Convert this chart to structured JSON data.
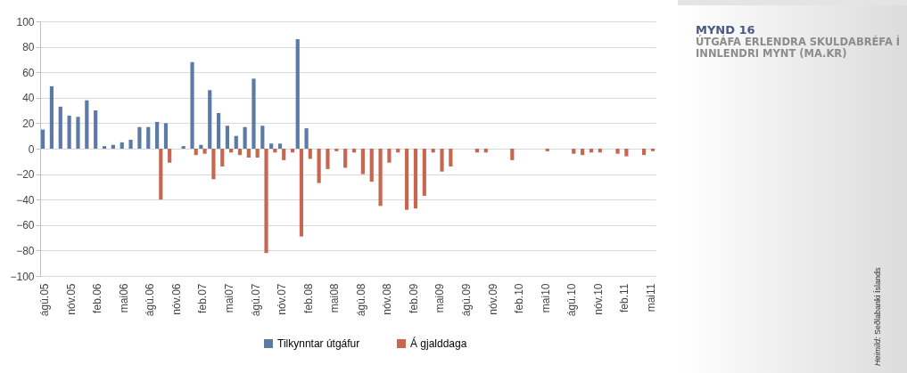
{
  "chart_data": {
    "type": "bar",
    "title": "MYND 16",
    "subtitle": "ÚTGÁFA ERLENDRA SKULDABRÉFA Í INNLENDRI MYNT (MA.KR)",
    "annotations": [
      "Heimild: Seðlabanki Íslands"
    ],
    "categories": [
      "ágú.05",
      null,
      null,
      "nóv.05",
      null,
      null,
      "feb.06",
      null,
      null,
      "mai06",
      null,
      null,
      "ágú.06",
      null,
      null,
      "nóv.06",
      null,
      null,
      "feb.07",
      null,
      null,
      "mai07",
      null,
      null,
      "ágú.07",
      null,
      null,
      "nóv.07",
      null,
      null,
      "feb.08",
      null,
      null,
      "mai08",
      null,
      null,
      "ágú.08",
      null,
      null,
      "nóv.08",
      null,
      null,
      "feb.09",
      null,
      null,
      "mai09",
      null,
      null,
      "ágú.09",
      null,
      null,
      "nóv.09",
      null,
      null,
      "feb.10",
      null,
      null,
      "mai10",
      null,
      null,
      "ágú.10",
      null,
      null,
      "nóv.10",
      null,
      null,
      "feb.11",
      null,
      null,
      "mai11"
    ],
    "series": [
      {
        "name": "Tilkynntar útgáfur",
        "color": "#5b7aa5",
        "values": [
          15,
          49,
          33,
          26,
          25,
          38,
          30,
          2,
          3,
          5,
          7,
          17,
          17,
          21,
          20,
          0,
          2,
          68,
          3,
          46,
          28,
          18,
          10,
          17,
          55,
          18,
          4,
          4,
          0,
          86,
          16,
          0,
          0,
          0,
          0,
          0,
          0,
          0,
          0,
          0,
          0,
          0,
          0,
          0,
          0,
          0,
          0,
          0,
          0,
          0,
          0,
          0,
          0,
          0,
          0,
          0,
          0,
          0,
          0,
          0,
          0,
          0,
          0,
          0,
          0,
          0,
          0,
          0,
          0,
          0
        ]
      },
      {
        "name": "Á gjalddaga",
        "color": "#c8674f",
        "values": [
          0,
          0,
          0,
          0,
          0,
          0,
          0,
          0,
          0,
          0,
          0,
          0,
          0,
          -40,
          -11,
          0,
          0,
          -5,
          -4,
          -24,
          -14,
          -3,
          -5,
          -7,
          -7,
          -82,
          -3,
          -9,
          -3,
          -69,
          -8,
          -27,
          -16,
          -2,
          -15,
          -3,
          -20,
          -26,
          -45,
          -11,
          -3,
          -48,
          -47,
          -37,
          -3,
          -18,
          -14,
          0,
          0,
          -3,
          -3,
          0,
          0,
          -9,
          0,
          0,
          0,
          -2,
          0,
          0,
          -4,
          -5,
          -3,
          -3,
          0,
          -4,
          -6,
          0,
          -5,
          -2
        ]
      }
    ],
    "ylim": [
      -100,
      100
    ],
    "yticks": [
      -100,
      -80,
      -60,
      -40,
      -20,
      0,
      20,
      40,
      60,
      80,
      100
    ],
    "grid": "y",
    "legend": "bottom"
  }
}
